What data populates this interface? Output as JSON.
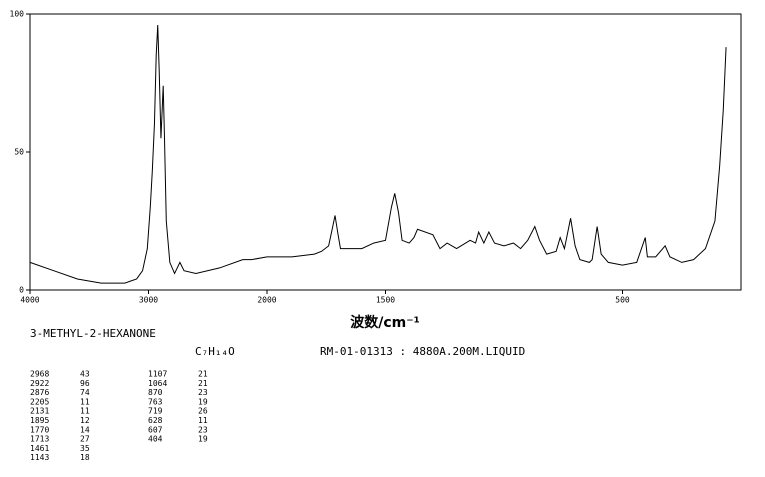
{
  "chart_data": {
    "type": "line",
    "x_label": "波数/cm⁻¹",
    "x_scale": {
      "break": 2000,
      "high_side_ratio": 0.5
    },
    "xlim": [
      4000,
      0
    ],
    "ylim": [
      0,
      100
    ],
    "xticks": [
      4000,
      3000,
      2000,
      1500,
      500
    ],
    "yticks": [
      0,
      50,
      100
    ],
    "x": [
      4000,
      3800,
      3600,
      3400,
      3200,
      3100,
      3050,
      3010,
      2985,
      2968,
      2950,
      2935,
      2922,
      2910,
      2895,
      2885,
      2876,
      2865,
      2850,
      2820,
      2780,
      2735,
      2700,
      2600,
      2400,
      2205,
      2131,
      2000,
      1895,
      1800,
      1770,
      1740,
      1725,
      1713,
      1700,
      1690,
      1600,
      1550,
      1500,
      1475,
      1461,
      1445,
      1430,
      1400,
      1380,
      1365,
      1300,
      1270,
      1240,
      1200,
      1143,
      1120,
      1107,
      1085,
      1064,
      1040,
      1000,
      960,
      930,
      900,
      870,
      850,
      820,
      780,
      763,
      745,
      719,
      700,
      680,
      640,
      628,
      607,
      590,
      560,
      500,
      440,
      404,
      395,
      360,
      320,
      300,
      250,
      200,
      150,
      110,
      90,
      75,
      63
    ],
    "series": [
      {
        "color": "#000000",
        "values": [
          10,
          7,
          4,
          2.5,
          2.5,
          4,
          7,
          15,
          30,
          43,
          60,
          85,
          96,
          80,
          55,
          65,
          74,
          55,
          25,
          10,
          6,
          10,
          7,
          6,
          8,
          11,
          11,
          12,
          12,
          13,
          14,
          16,
          22,
          27,
          20,
          15,
          15,
          17,
          18,
          30,
          35,
          28,
          18,
          17,
          19,
          22,
          20,
          15,
          17,
          15,
          18,
          17,
          21,
          17,
          21,
          17,
          16,
          17,
          15,
          18,
          23,
          18,
          13,
          14,
          19,
          15,
          26,
          16,
          11,
          10,
          11,
          23,
          13,
          10,
          9,
          10,
          19,
          12,
          12,
          16,
          12,
          10,
          11,
          15,
          25,
          45,
          65,
          88
        ]
      }
    ]
  },
  "sample": {
    "name": "3-METHYL-2-HEXANONE",
    "formula": "C₇H₁₄O",
    "spectrum_code": "RM-01-01313 : 4880A.200M.LIQUID"
  },
  "peak_table": [
    [
      2968,
      43
    ],
    [
      2922,
      96
    ],
    [
      2876,
      74
    ],
    [
      2205,
      11
    ],
    [
      2131,
      11
    ],
    [
      1895,
      12
    ],
    [
      1770,
      14
    ],
    [
      1713,
      27
    ],
    [
      1461,
      35
    ],
    [
      1143,
      18
    ],
    [
      1107,
      21
    ],
    [
      1064,
      21
    ],
    [
      870,
      23
    ],
    [
      763,
      19
    ],
    [
      719,
      26
    ],
    [
      628,
      11
    ],
    [
      607,
      23
    ],
    [
      404,
      19
    ]
  ]
}
